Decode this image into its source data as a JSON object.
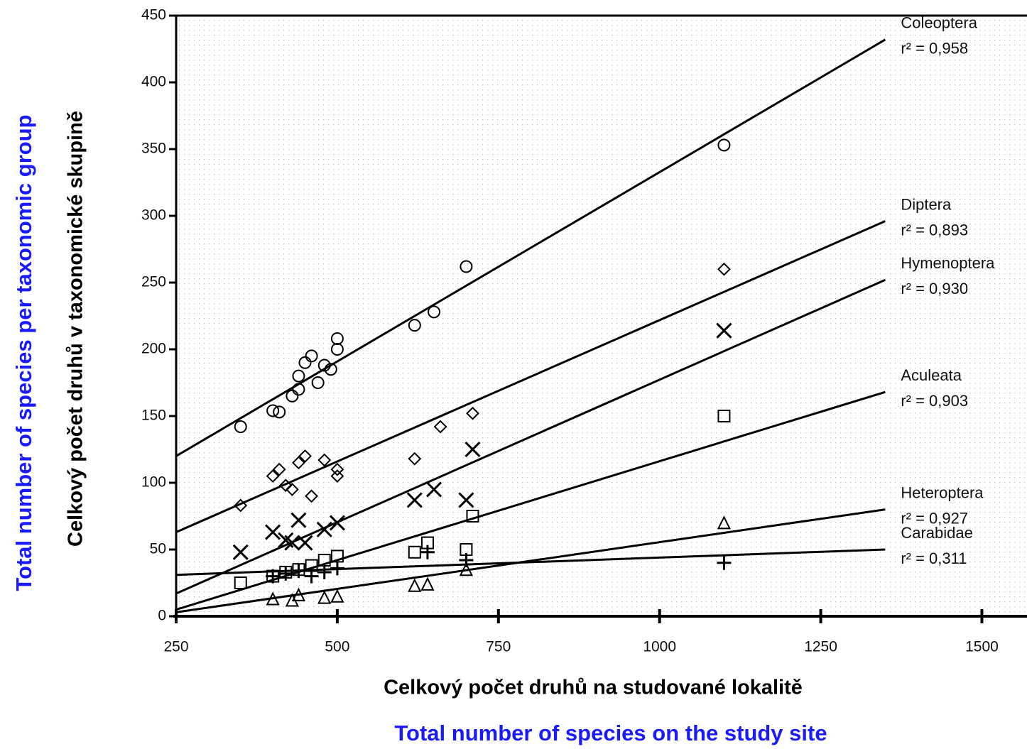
{
  "chart_data": {
    "type": "scatter",
    "x_label": "Celkový počet druhů na studované lokalitě",
    "x_label_en": "Total number of species on the study site",
    "y_label": "Celkový počet druhů v taxonomické skupině",
    "y_label_en": "Total number of species per taxonomic group",
    "xlim": [
      250,
      1570
    ],
    "ylim": [
      0,
      450
    ],
    "xticks": [
      250,
      500,
      750,
      1000,
      1250,
      1500
    ],
    "yticks": [
      0,
      50,
      100,
      150,
      200,
      250,
      300,
      350,
      400,
      450
    ],
    "series": [
      {
        "name": "Coleoptera",
        "r2_label": "r² = 0,958",
        "marker": "circle",
        "color": "#000000",
        "x": [
          350,
          400,
          410,
          430,
          440,
          440,
          450,
          460,
          470,
          480,
          490,
          500,
          500,
          620,
          650,
          700,
          1100
        ],
        "values": [
          142,
          154,
          153,
          165,
          170,
          180,
          190,
          195,
          175,
          188,
          185,
          200,
          208,
          218,
          228,
          262,
          353
        ],
        "line_x": [
          250,
          1350
        ],
        "line_y": [
          120,
          432
        ]
      },
      {
        "name": "Diptera",
        "r2_label": "r² = 0,893",
        "marker": "diamond",
        "color": "#000000",
        "x": [
          350,
          400,
          410,
          420,
          430,
          440,
          450,
          460,
          480,
          500,
          500,
          620,
          660,
          710,
          1100
        ],
        "values": [
          83,
          105,
          110,
          98,
          95,
          115,
          120,
          90,
          117,
          110,
          105,
          118,
          142,
          152,
          260
        ],
        "line_x": [
          250,
          1350
        ],
        "line_y": [
          63,
          296
        ]
      },
      {
        "name": "Hymenoptera",
        "r2_label": "r² = 0,930",
        "marker": "x",
        "color": "#000000",
        "x": [
          350,
          400,
          420,
          430,
          440,
          450,
          480,
          500,
          620,
          650,
          700,
          710,
          1100
        ],
        "values": [
          48,
          63,
          57,
          55,
          72,
          55,
          65,
          70,
          87,
          95,
          87,
          125,
          214
        ],
        "line_x": [
          250,
          1350
        ],
        "line_y": [
          17,
          252
        ]
      },
      {
        "name": "Aculeata",
        "r2_label": "r² = 0,903",
        "marker": "square",
        "color": "#000000",
        "x": [
          350,
          400,
          420,
          440,
          460,
          480,
          500,
          620,
          640,
          700,
          710,
          1100
        ],
        "values": [
          25,
          30,
          33,
          35,
          38,
          42,
          45,
          48,
          55,
          50,
          75,
          150
        ],
        "line_x": [
          250,
          1350
        ],
        "line_y": [
          5,
          168
        ]
      },
      {
        "name": "Heteroptera",
        "r2_label": "r² = 0,927",
        "marker": "triangle",
        "color": "#000000",
        "x": [
          400,
          430,
          440,
          480,
          500,
          620,
          640,
          700,
          1100
        ],
        "values": [
          13,
          12,
          16,
          14,
          15,
          23,
          24,
          35,
          70
        ],
        "line_x": [
          250,
          1350
        ],
        "line_y": [
          3,
          80
        ]
      },
      {
        "name": "Carabidae",
        "r2_label": "r² = 0,311",
        "marker": "plus",
        "color": "#000000",
        "x": [
          400,
          420,
          440,
          460,
          480,
          500,
          640,
          700,
          1100
        ],
        "values": [
          30,
          32,
          34,
          30,
          33,
          36,
          48,
          42,
          40
        ],
        "line_x": [
          250,
          1350
        ],
        "line_y": [
          31,
          50
        ]
      }
    ]
  }
}
